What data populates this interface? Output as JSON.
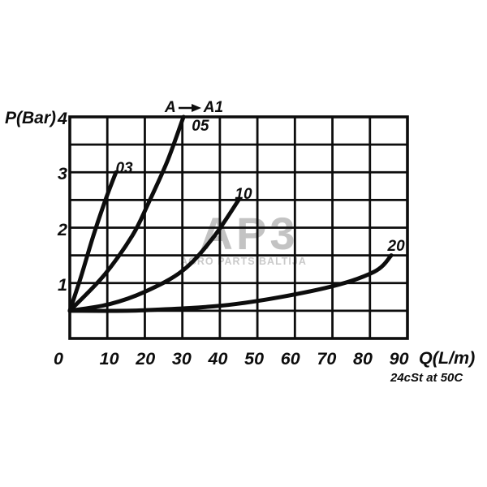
{
  "watermark": {
    "logo": "AP3",
    "subtitle": "AGRO PARTS BALTIJA",
    "logo_color": "#c3c3c3",
    "subtitle_color": "#c9c9c9"
  },
  "annotation": {
    "from": "A",
    "to": "A1"
  },
  "axes": {
    "y_label": "P(Bar)",
    "x_label": "Q(L/m)",
    "x_ticks": [
      0,
      10,
      20,
      30,
      40,
      50,
      60,
      70,
      80,
      90
    ],
    "y_ticks": [
      1,
      2,
      3,
      4
    ],
    "footnote": "24cSt at 50C"
  },
  "colors": {
    "line": "#0d0d0d",
    "grid": "#0d0d0d",
    "background": "#ffffff"
  },
  "chart_data": {
    "type": "line",
    "title": "",
    "xlabel": "Q(L/m)",
    "ylabel": "P(Bar)",
    "xlim": [
      0,
      90
    ],
    "ylim": [
      0,
      4
    ],
    "x_gridstep": 10,
    "y_gridstep": 0.5,
    "grid": true,
    "note": "24cSt at 50C",
    "annotation": "A → A1",
    "series": [
      {
        "name": "03",
        "points": [
          [
            0,
            0.5
          ],
          [
            3,
            1.12
          ],
          [
            6.3,
            1.86
          ],
          [
            9.5,
            2.5
          ],
          [
            12.3,
            3.0
          ]
        ],
        "label_pos": [
          14.5,
          3.06
        ]
      },
      {
        "name": "05",
        "points": [
          [
            0,
            0.5
          ],
          [
            9,
            1.13
          ],
          [
            16.7,
            1.86
          ],
          [
            21,
            2.45
          ],
          [
            26,
            3.2
          ],
          [
            30.3,
            4.0
          ]
        ],
        "label_pos": [
          34.8,
          3.82
        ]
      },
      {
        "name": "10",
        "points": [
          [
            0,
            0.5
          ],
          [
            10.6,
            0.62
          ],
          [
            19.9,
            0.84
          ],
          [
            30,
            1.22
          ],
          [
            38,
            1.8
          ],
          [
            45,
            2.5
          ]
        ],
        "label_pos": [
          46.3,
          2.6
        ]
      },
      {
        "name": "20",
        "points": [
          [
            0,
            0.5
          ],
          [
            20,
            0.51
          ],
          [
            44,
            0.62
          ],
          [
            68,
            0.91
          ],
          [
            81,
            1.2
          ],
          [
            85.7,
            1.5
          ]
        ],
        "label_pos": [
          87,
          1.66
        ]
      }
    ]
  }
}
